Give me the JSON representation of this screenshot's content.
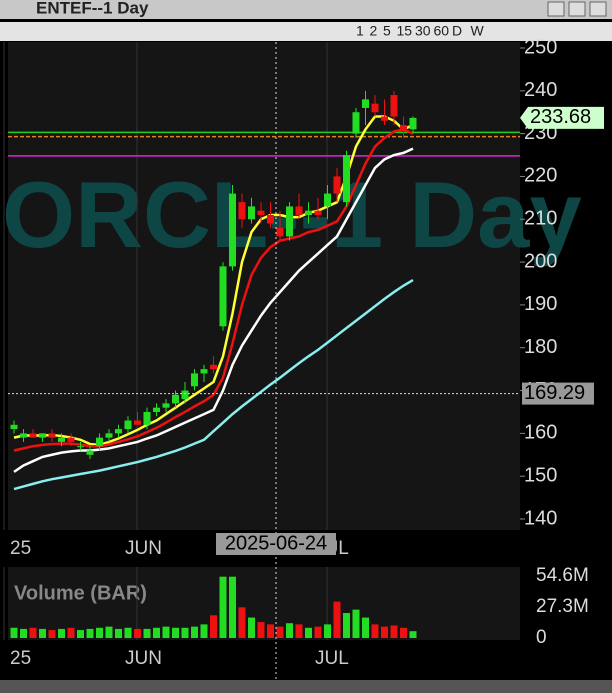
{
  "window_title": "ENTEF--1 Day",
  "toolbar": {
    "periods": [
      "1",
      "2",
      "5",
      "15",
      "30",
      "60",
      "D",
      "W"
    ]
  },
  "chart_data": {
    "type": "candlestick",
    "watermark": "ORCL--1 Day",
    "categories": [
      "25",
      null,
      null,
      null,
      null,
      null,
      null,
      null,
      null,
      null,
      null,
      null,
      null,
      null,
      "JUN",
      null,
      null,
      null,
      null,
      null,
      null,
      null,
      null,
      null,
      null,
      null,
      null,
      null,
      null,
      null,
      null,
      null,
      null,
      null,
      "JUL",
      null,
      null,
      null,
      null,
      null,
      null,
      null,
      null
    ],
    "open": [
      161,
      159,
      160,
      159,
      160,
      158,
      159,
      157,
      155,
      157,
      159,
      160,
      161,
      163,
      162,
      165,
      166,
      167,
      168,
      171,
      174,
      176,
      185,
      199,
      214,
      210,
      212,
      211,
      208,
      206,
      213,
      211,
      212,
      213,
      220,
      214,
      230,
      236,
      237,
      234,
      239,
      232,
      231
    ],
    "high": [
      163,
      161,
      161,
      160,
      161,
      160,
      160,
      158,
      157,
      160,
      161,
      162,
      164,
      165,
      166,
      167,
      168,
      170,
      172,
      175,
      176,
      178,
      200,
      218,
      216,
      215,
      214,
      214,
      212,
      214,
      216,
      214,
      215,
      218,
      222,
      226,
      236,
      240,
      239,
      238,
      240,
      234,
      234
    ],
    "low": [
      160,
      158,
      159,
      158,
      158,
      157,
      157,
      156,
      154,
      156,
      158,
      159,
      160,
      162,
      161,
      164,
      165,
      166,
      167,
      170,
      172,
      174,
      184,
      198,
      208,
      209,
      209,
      208,
      205,
      205,
      210,
      209,
      210,
      210,
      214,
      213,
      229,
      232,
      234,
      232,
      232,
      229,
      230
    ],
    "close": [
      162,
      160,
      159,
      160,
      159,
      159,
      158,
      157,
      156,
      159,
      160,
      161,
      163,
      162,
      165,
      166,
      167,
      169,
      170,
      174,
      175,
      175,
      199,
      216,
      210,
      213,
      211,
      209,
      206,
      213,
      211,
      212,
      211,
      216,
      216,
      225,
      235,
      238,
      235,
      233,
      234,
      231,
      233.68
    ],
    "up_color": "#22dd22",
    "down_color": "#ee1111",
    "moving_averages": [
      {
        "color": "#ffff33",
        "values": [
          159,
          159.5,
          159.5,
          159.5,
          159.6,
          159.4,
          159,
          158.5,
          157.5,
          157.3,
          158,
          158.8,
          159.8,
          160.8,
          162,
          163,
          164.5,
          166,
          167.5,
          169,
          170.5,
          172,
          178,
          188,
          200,
          207,
          210,
          211,
          211,
          210.5,
          210.5,
          211.5,
          212,
          213,
          214,
          220,
          227,
          231,
          234,
          234,
          233,
          231,
          232
        ]
      },
      {
        "color": "#ee1111",
        "values": [
          156,
          156.5,
          157,
          157.3,
          157.5,
          157.6,
          157.6,
          157.4,
          157,
          157,
          157.4,
          158,
          158.6,
          159.3,
          160.3,
          161.3,
          162.5,
          163.8,
          165,
          166.3,
          167.5,
          169,
          173,
          181,
          190,
          197,
          201,
          203.5,
          205,
          205.5,
          206,
          207,
          207.5,
          208.5,
          209.5,
          213,
          218,
          223,
          227,
          229,
          230.5,
          231,
          230
        ]
      },
      {
        "color": "#ffffff",
        "values": [
          151,
          152.5,
          153.5,
          154.5,
          155,
          155.5,
          155.8,
          156,
          156,
          156.2,
          156.5,
          157,
          157.5,
          158,
          158.8,
          159.5,
          160.5,
          161.5,
          162.5,
          163.5,
          164.5,
          165.5,
          170,
          176,
          180.5,
          184,
          187.5,
          190.5,
          193,
          195.5,
          198,
          200,
          202,
          204,
          206,
          210,
          214,
          218,
          222,
          224,
          225,
          225.5,
          226.5
        ]
      },
      {
        "color": "#88eeee",
        "values": [
          147,
          147.6,
          148.2,
          148.8,
          149.3,
          149.7,
          150.1,
          150.5,
          150.9,
          151.3,
          151.8,
          152.3,
          152.8,
          153.3,
          153.9,
          154.5,
          155.2,
          155.9,
          156.7,
          157.6,
          158.5,
          160.5,
          162.5,
          164.5,
          166.3,
          168,
          169.7,
          171.4,
          173,
          174.7,
          176.4,
          178,
          179.5,
          181.2,
          182.9,
          184.6,
          186.3,
          188,
          189.7,
          191.4,
          193,
          194.5,
          195.8
        ]
      }
    ],
    "hlines": [
      {
        "value": 230.3,
        "color": "#22cc22"
      },
      {
        "value": 229.3,
        "color": "#e08020"
      },
      {
        "value": 224.8,
        "color": "#e020e0"
      }
    ],
    "ylim": [
      140,
      250
    ],
    "yticks": [
      140,
      150,
      160,
      170,
      180,
      190,
      200,
      210,
      220,
      230,
      240,
      250
    ],
    "last_price": {
      "value": 233.68,
      "label": "233.68"
    },
    "crosshair": {
      "x_label": "2025-06-24",
      "y": 169.29,
      "y_label": "169.29"
    },
    "volume": {
      "title": "Volume (BAR)",
      "values": [
        9,
        8,
        9,
        8,
        7,
        8,
        9,
        7,
        8,
        9,
        10,
        8,
        9,
        8,
        8,
        9,
        10,
        9,
        9,
        10,
        12,
        20,
        54,
        54,
        27,
        18,
        14,
        12,
        10,
        13,
        12,
        9,
        10,
        12,
        32,
        22,
        25,
        18,
        12,
        10,
        11,
        9,
        6
      ],
      "ylim": [
        0,
        54.6
      ],
      "yticks": [
        {
          "value": 0,
          "label": "0"
        },
        {
          "value": 27.3,
          "label": "27.3M"
        },
        {
          "value": 54.6,
          "label": "54.6M"
        }
      ]
    }
  }
}
